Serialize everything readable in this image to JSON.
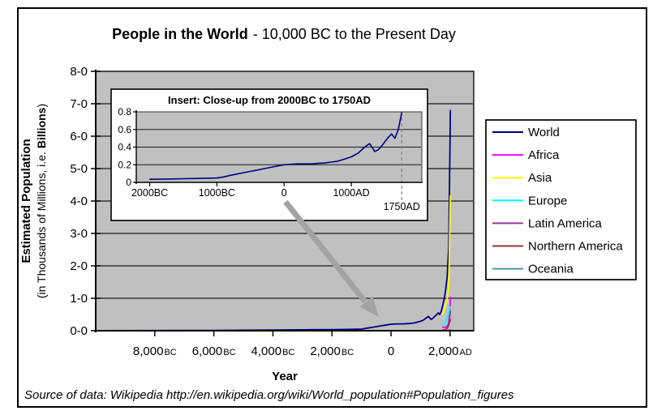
{
  "title": {
    "bold": "People in the World",
    "rest": "- 10,000 BC to the Present Day"
  },
  "y_axis": {
    "title_bold": "Estimated Population",
    "subtitle_prefix": "(in Thousands of Millions, i.e.",
    "subtitle_bold": "Billions",
    "subtitle_suffix": ")",
    "ticks": [
      {
        "label": "0-0",
        "value": 0
      },
      {
        "label": "1-0",
        "value": 1
      },
      {
        "label": "2-0",
        "value": 2
      },
      {
        "label": "3-0",
        "value": 3
      },
      {
        "label": "4-0",
        "value": 4
      },
      {
        "label": "5-0",
        "value": 5
      },
      {
        "label": "6-0",
        "value": 6
      },
      {
        "label": "7-0",
        "value": 7
      },
      {
        "label": "8-0",
        "value": 8
      }
    ]
  },
  "x_axis": {
    "title": "Year",
    "ticks": [
      {
        "label": "8,000",
        "suffix": "BC",
        "year": -8000
      },
      {
        "label": "6,000",
        "suffix": "BC",
        "year": -6000
      },
      {
        "label": "4,000",
        "suffix": "BC",
        "year": -4000
      },
      {
        "label": "2,000",
        "suffix": "BC",
        "year": -2000
      },
      {
        "label": "0",
        "suffix": "",
        "year": 0
      },
      {
        "label": "2,000",
        "suffix": "AD",
        "year": 2000
      }
    ]
  },
  "insert": {
    "title": "Insert:  Close-up from 2000BC to 1750AD",
    "y_ticks": [
      {
        "label": "0.8",
        "value": 0.8
      },
      {
        "label": "0.6",
        "value": 0.6
      },
      {
        "label": "0.4",
        "value": 0.4
      },
      {
        "label": "0.2",
        "value": 0.2
      },
      {
        "label": "0",
        "value": 0
      }
    ],
    "x_ticks": [
      {
        "label": "2000BC",
        "year": -2000
      },
      {
        "label": "1000BC",
        "year": -1000
      },
      {
        "label": "0",
        "year": 0
      },
      {
        "label": "1000AD",
        "year": 1000
      }
    ],
    "annotation_label": "1750AD",
    "annotation_year": 1750
  },
  "legend": {
    "items": [
      {
        "label": "World",
        "color": "#000080"
      },
      {
        "label": "Africa",
        "color": "#FF00FF"
      },
      {
        "label": "Asia",
        "color": "#FFFF00"
      },
      {
        "label": "Europe",
        "color": "#00FFFF"
      },
      {
        "label": "Latin America",
        "color": "#993399"
      },
      {
        "label": "Northern America",
        "color": "#993333"
      },
      {
        "label": "Oceania",
        "color": "#4D9999"
      }
    ]
  },
  "source_note": "Source of data: Wikipedia  http://en.wikipedia.org/wiki/World_population#Population_figures",
  "colors": {
    "plot_bg": "#C0C0C0",
    "gridline": "#1a1a1a",
    "axis": "#000000",
    "arrow": "#A3A3A3",
    "source_text": "#A0A0A0",
    "insert_dashed": "#808080"
  },
  "chart_data": [
    {
      "type": "line",
      "title": "People in the World - 10,000 BC to the Present Day",
      "xlabel": "Year",
      "ylabel": "Estimated Population (in Thousands of Millions, i.e. Billions)",
      "xlim": [
        -10000,
        2800
      ],
      "ylim": [
        0,
        8
      ],
      "x_ticks": [
        -8000,
        -6000,
        -4000,
        -2000,
        0,
        2000
      ],
      "y_ticks": [
        0,
        1,
        2,
        3,
        4,
        5,
        6,
        7,
        8
      ],
      "grid": true,
      "legend_position": "right",
      "series": [
        {
          "name": "World",
          "color": "#000080",
          "points": [
            [
              -10000,
              0.002
            ],
            [
              -8000,
              0.005
            ],
            [
              -6000,
              0.01
            ],
            [
              -4000,
              0.02
            ],
            [
              -3000,
              0.027
            ],
            [
              -2000,
              0.035
            ],
            [
              -1500,
              0.04
            ],
            [
              -1000,
              0.05
            ],
            [
              -800,
              0.08
            ],
            [
              -600,
              0.11
            ],
            [
              -400,
              0.14
            ],
            [
              -200,
              0.17
            ],
            [
              1,
              0.2
            ],
            [
              200,
              0.21
            ],
            [
              400,
              0.21
            ],
            [
              600,
              0.22
            ],
            [
              800,
              0.24
            ],
            [
              1000,
              0.29
            ],
            [
              1100,
              0.33
            ],
            [
              1200,
              0.4
            ],
            [
              1270,
              0.44
            ],
            [
              1350,
              0.35
            ],
            [
              1400,
              0.37
            ],
            [
              1500,
              0.46
            ],
            [
              1600,
              0.55
            ],
            [
              1650,
              0.5
            ],
            [
              1700,
              0.6
            ],
            [
              1750,
              0.79
            ],
            [
              1800,
              0.98
            ],
            [
              1850,
              1.26
            ],
            [
              1900,
              1.65
            ],
            [
              1950,
              2.52
            ],
            [
              1960,
              3.02
            ],
            [
              1970,
              3.7
            ],
            [
              1980,
              4.44
            ],
            [
              1990,
              5.27
            ],
            [
              2000,
              6.06
            ],
            [
              2010,
              6.79
            ]
          ]
        },
        {
          "name": "Africa",
          "color": "#FF00FF",
          "points": [
            [
              1750,
              0.106
            ],
            [
              1800,
              0.107
            ],
            [
              1850,
              0.111
            ],
            [
              1900,
              0.133
            ],
            [
              1950,
              0.229
            ],
            [
              1980,
              0.48
            ],
            [
              1990,
              0.63
            ],
            [
              2000,
              0.81
            ],
            [
              2010,
              1.03
            ]
          ]
        },
        {
          "name": "Asia",
          "color": "#FFFF00",
          "points": [
            [
              1750,
              0.502
            ],
            [
              1800,
              0.635
            ],
            [
              1850,
              0.809
            ],
            [
              1900,
              0.947
            ],
            [
              1950,
              1.4
            ],
            [
              1970,
              2.14
            ],
            [
              1980,
              2.63
            ],
            [
              1990,
              3.21
            ],
            [
              2000,
              3.7
            ],
            [
              2010,
              4.16
            ]
          ]
        },
        {
          "name": "Europe",
          "color": "#00FFFF",
          "points": [
            [
              1750,
              0.163
            ],
            [
              1800,
              0.203
            ],
            [
              1850,
              0.276
            ],
            [
              1900,
              0.408
            ],
            [
              1950,
              0.547
            ],
            [
              1980,
              0.694
            ],
            [
              2000,
              0.726
            ],
            [
              2010,
              0.74
            ]
          ]
        },
        {
          "name": "Latin America",
          "color": "#993399",
          "points": [
            [
              1750,
              0.016
            ],
            [
              1800,
              0.024
            ],
            [
              1850,
              0.038
            ],
            [
              1900,
              0.074
            ],
            [
              1950,
              0.167
            ],
            [
              1980,
              0.362
            ],
            [
              2000,
              0.521
            ],
            [
              2010,
              0.59
            ]
          ]
        },
        {
          "name": "Northern America",
          "color": "#993333",
          "points": [
            [
              1750,
              0.002
            ],
            [
              1800,
              0.007
            ],
            [
              1850,
              0.026
            ],
            [
              1900,
              0.082
            ],
            [
              1950,
              0.172
            ],
            [
              1980,
              0.254
            ],
            [
              2000,
              0.313
            ],
            [
              2010,
              0.345
            ]
          ]
        },
        {
          "name": "Oceania",
          "color": "#4D9999",
          "points": [
            [
              1750,
              0.002
            ],
            [
              1800,
              0.002
            ],
            [
              1850,
              0.002
            ],
            [
              1900,
              0.006
            ],
            [
              1950,
              0.013
            ],
            [
              1980,
              0.023
            ],
            [
              2000,
              0.031
            ],
            [
              2010,
              0.037
            ]
          ]
        }
      ]
    },
    {
      "type": "line",
      "title": "Insert:  Close-up from 2000BC to 1750AD",
      "xlim": [
        -2200,
        2050
      ],
      "ylim": [
        0,
        0.8
      ],
      "x_ticks": [
        -2000,
        -1000,
        0,
        1000
      ],
      "y_ticks": [
        0,
        0.2,
        0.4,
        0.6,
        0.8
      ],
      "grid": true,
      "annotation": {
        "label": "1750AD",
        "year": 1750,
        "style": "dashed-vertical"
      },
      "series": [
        {
          "name": "World",
          "color": "#000080",
          "points": [
            [
              -2000,
              0.035
            ],
            [
              -1750,
              0.038
            ],
            [
              -1500,
              0.041
            ],
            [
              -1250,
              0.045
            ],
            [
              -1000,
              0.05
            ],
            [
              -900,
              0.062
            ],
            [
              -800,
              0.08
            ],
            [
              -700,
              0.095
            ],
            [
              -600,
              0.11
            ],
            [
              -500,
              0.125
            ],
            [
              -400,
              0.14
            ],
            [
              -300,
              0.155
            ],
            [
              -200,
              0.17
            ],
            [
              -100,
              0.185
            ],
            [
              1,
              0.2
            ],
            [
              100,
              0.205
            ],
            [
              200,
              0.21
            ],
            [
              300,
              0.21
            ],
            [
              400,
              0.21
            ],
            [
              500,
              0.215
            ],
            [
              600,
              0.22
            ],
            [
              700,
              0.23
            ],
            [
              800,
              0.24
            ],
            [
              900,
              0.265
            ],
            [
              1000,
              0.29
            ],
            [
              1100,
              0.33
            ],
            [
              1200,
              0.4
            ],
            [
              1270,
              0.44
            ],
            [
              1300,
              0.41
            ],
            [
              1350,
              0.35
            ],
            [
              1400,
              0.37
            ],
            [
              1450,
              0.41
            ],
            [
              1500,
              0.46
            ],
            [
              1550,
              0.51
            ],
            [
              1600,
              0.55
            ],
            [
              1650,
              0.5
            ],
            [
              1700,
              0.6
            ],
            [
              1750,
              0.79
            ]
          ]
        }
      ]
    }
  ]
}
